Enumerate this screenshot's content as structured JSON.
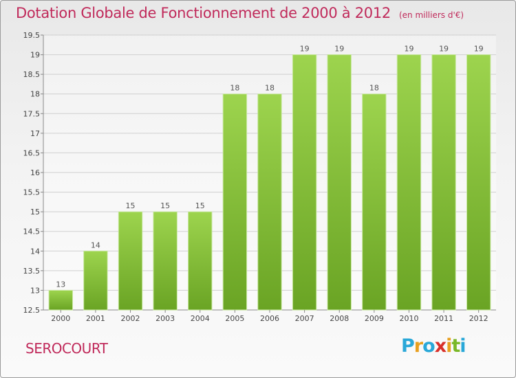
{
  "header": {
    "title": "Dotation Globale de Fonctionnement de 2000 à 2012",
    "unit": "(en milliers d'€)"
  },
  "footer": {
    "commune": "SEROCOURT",
    "logo_letters": [
      "P",
      "r",
      "o",
      "x",
      "i",
      "t",
      "i"
    ],
    "logo_colors": [
      "#2aa8d8",
      "#e8a020",
      "#2aa8d8",
      "#d8302a",
      "#e8a020",
      "#7ab828",
      "#2aa8d8"
    ]
  },
  "chart_data": {
    "type": "bar",
    "categories": [
      "2000",
      "2001",
      "2002",
      "2003",
      "2004",
      "2005",
      "2006",
      "2007",
      "2008",
      "2009",
      "2010",
      "2011",
      "2012"
    ],
    "values": [
      13,
      14,
      15,
      15,
      15,
      18,
      18,
      19,
      19,
      18,
      19,
      19,
      19
    ],
    "data_labels": [
      "13",
      "14",
      "15",
      "15",
      "15",
      "18",
      "18",
      "19",
      "19",
      "18",
      "19",
      "19",
      "19"
    ],
    "ylim": [
      12.5,
      19.5
    ],
    "yticks": [
      12.5,
      13,
      13.5,
      14,
      14.5,
      15,
      15.5,
      16,
      16.5,
      17,
      17.5,
      18,
      18.5,
      19,
      19.5
    ],
    "ytick_labels": [
      "12.5",
      "13",
      "13.5",
      "14",
      "14.5",
      "15",
      "15.5",
      "16",
      "16.5",
      "17",
      "17.5",
      "18",
      "18.5",
      "19",
      "19.5"
    ],
    "grid": true,
    "bar_color_light": "#9dd44e",
    "bar_color_dark": "#6aa424",
    "label_color": "#555555"
  }
}
